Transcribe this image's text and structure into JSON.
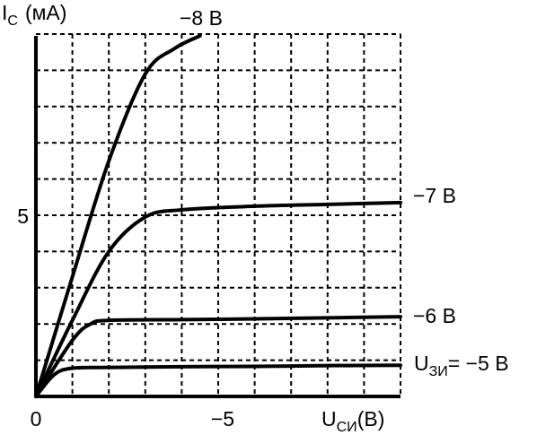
{
  "chart_data": {
    "type": "line",
    "title": "",
    "ylabel": {
      "main": "I",
      "sub": "C",
      "unit": "(мА)"
    },
    "xlabel": {
      "main": "U",
      "sub": "СИ",
      "unit": "(В)"
    },
    "x_ticks": [
      {
        "value": 0,
        "label": "0"
      },
      {
        "value": -5,
        "label": "−5"
      }
    ],
    "y_ticks": [
      {
        "value": 5,
        "label": "5"
      }
    ],
    "xlim": [
      0,
      -10
    ],
    "ylim": [
      0,
      10
    ],
    "grid": true,
    "gate_label_prefix": {
      "main": "U",
      "sub": "ЗИ",
      "eq": "= "
    },
    "series": [
      {
        "name": "−8 В",
        "x": [
          0,
          -1,
          -2,
          -3,
          -3.8,
          -4.5
        ],
        "y": [
          0,
          3.3,
          6.5,
          8.9,
          9.6,
          9.95
        ]
      },
      {
        "name": "−7 В",
        "x": [
          0,
          -1,
          -2,
          -3,
          -4,
          -6,
          -8,
          -10
        ],
        "y": [
          0,
          2.1,
          4.0,
          4.95,
          5.15,
          5.25,
          5.3,
          5.35
        ]
      },
      {
        "name": "−6 В",
        "x": [
          0,
          -1,
          -1.5,
          -2,
          -4,
          -6,
          -8,
          -10
        ],
        "y": [
          0,
          1.55,
          2.0,
          2.1,
          2.12,
          2.14,
          2.17,
          2.2
        ]
      },
      {
        "name": "−5 В",
        "x": [
          0,
          -0.5,
          -1,
          -2,
          -4,
          -6,
          -8,
          -10
        ],
        "y": [
          0,
          0.6,
          0.78,
          0.8,
          0.82,
          0.83,
          0.85,
          0.86
        ]
      }
    ]
  }
}
